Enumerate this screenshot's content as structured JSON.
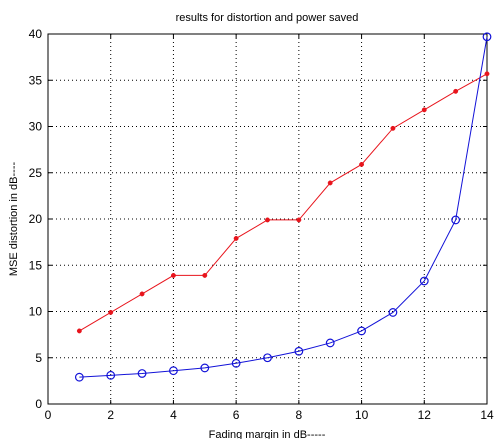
{
  "chart_data": {
    "type": "line",
    "title": "results for distortion and  power saved",
    "xlabel": "Fading margin in dB-----",
    "ylabel": "MSE distortion in dB----",
    "xlim": [
      0,
      14
    ],
    "ylim": [
      0,
      40
    ],
    "x_ticks": [
      "0",
      "2",
      "4",
      "6",
      "8",
      "10",
      "12",
      "14"
    ],
    "y_ticks": [
      "0",
      "5",
      "10",
      "15",
      "20",
      "25",
      "30",
      "35",
      "40"
    ],
    "grid": true,
    "grid_style": "dotted",
    "x": [
      1,
      2,
      3,
      4,
      5,
      6,
      7,
      8,
      9,
      10,
      11,
      12,
      13,
      14
    ],
    "series": [
      {
        "color": "#e8141c",
        "marker": "dot",
        "values": [
          7.9,
          9.9,
          11.9,
          13.9,
          13.9,
          17.9,
          19.9,
          19.9,
          23.9,
          25.9,
          29.8,
          31.8,
          33.8,
          35.7
        ]
      },
      {
        "color": "#1212d8",
        "marker": "circle",
        "values": [
          2.9,
          3.1,
          3.3,
          3.6,
          3.9,
          4.4,
          5.0,
          5.7,
          6.6,
          7.9,
          9.9,
          13.3,
          19.9,
          39.7
        ]
      }
    ]
  }
}
